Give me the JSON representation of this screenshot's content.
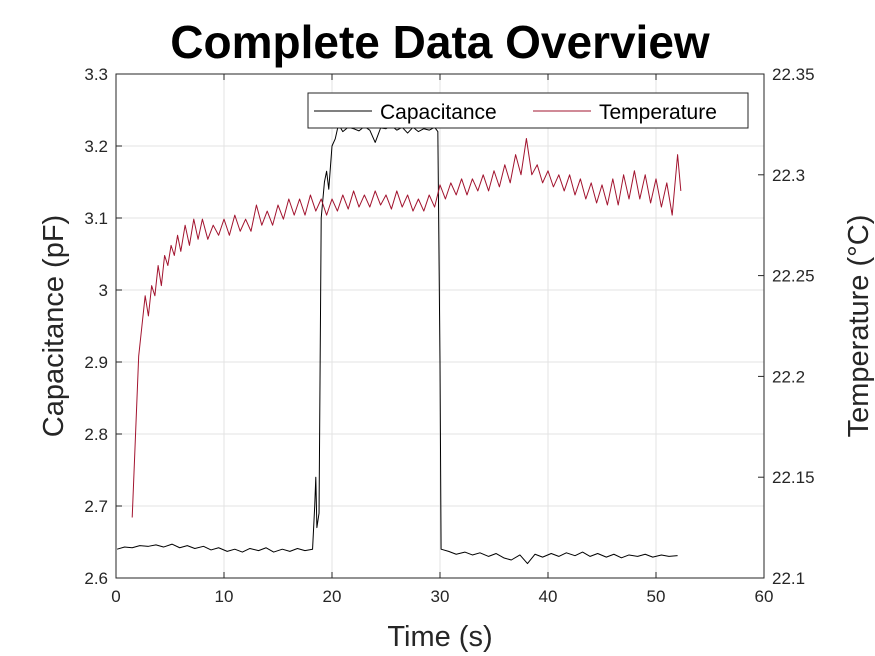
{
  "chart_data": {
    "type": "line",
    "title": "Complete Data Overview",
    "xlabel": "Time (s)",
    "ylabel_left": "Capacitance (pF)",
    "ylabel_right": "Temperature (°C)",
    "xlim": [
      0,
      60
    ],
    "ylim_left": [
      2.6,
      3.3
    ],
    "ylim_right": [
      22.1,
      22.35
    ],
    "x_ticks": [
      "0",
      "10",
      "20",
      "30",
      "40",
      "50",
      "60"
    ],
    "y_left_ticks": [
      "2.6",
      "2.7",
      "2.8",
      "2.9",
      "3",
      "3.1",
      "3.2",
      "3.3"
    ],
    "y_right_ticks": [
      "22.1",
      "22.15",
      "22.2",
      "22.25",
      "22.3",
      "22.35"
    ],
    "grid": true,
    "legend_position": "top-right",
    "series": [
      {
        "name": "Capacitance",
        "axis": "left",
        "color": "#000000",
        "points": [
          [
            0.1,
            2.64
          ],
          [
            0.8,
            2.643
          ],
          [
            1.5,
            2.642
          ],
          [
            2.2,
            2.645
          ],
          [
            3.0,
            2.644
          ],
          [
            3.7,
            2.646
          ],
          [
            4.4,
            2.643
          ],
          [
            5.2,
            2.647
          ],
          [
            5.9,
            2.642
          ],
          [
            6.6,
            2.645
          ],
          [
            7.3,
            2.641
          ],
          [
            8.1,
            2.644
          ],
          [
            8.8,
            2.639
          ],
          [
            9.5,
            2.642
          ],
          [
            10.3,
            2.637
          ],
          [
            11.0,
            2.64
          ],
          [
            11.7,
            2.636
          ],
          [
            12.4,
            2.641
          ],
          [
            13.2,
            2.638
          ],
          [
            13.9,
            2.642
          ],
          [
            14.6,
            2.636
          ],
          [
            15.4,
            2.64
          ],
          [
            16.1,
            2.637
          ],
          [
            16.8,
            2.641
          ],
          [
            17.5,
            2.638
          ],
          [
            18.2,
            2.64
          ],
          [
            18.4,
            2.7
          ],
          [
            18.5,
            2.74
          ],
          [
            18.6,
            2.67
          ],
          [
            18.8,
            2.69
          ],
          [
            19.0,
            3.1
          ],
          [
            19.3,
            3.15
          ],
          [
            19.5,
            3.165
          ],
          [
            19.7,
            3.14
          ],
          [
            20.0,
            3.2
          ],
          [
            20.3,
            3.21
          ],
          [
            20.6,
            3.23
          ],
          [
            21.0,
            3.22
          ],
          [
            21.5,
            3.226
          ],
          [
            22.0,
            3.224
          ],
          [
            22.5,
            3.221
          ],
          [
            23.0,
            3.227
          ],
          [
            23.5,
            3.222
          ],
          [
            24.0,
            3.205
          ],
          [
            24.5,
            3.225
          ],
          [
            25.0,
            3.224
          ],
          [
            25.5,
            3.228
          ],
          [
            26.0,
            3.222
          ],
          [
            26.5,
            3.226
          ],
          [
            27.0,
            3.218
          ],
          [
            27.5,
            3.226
          ],
          [
            28.0,
            3.22
          ],
          [
            28.5,
            3.224
          ],
          [
            29.0,
            3.222
          ],
          [
            29.5,
            3.226
          ],
          [
            29.8,
            3.22
          ],
          [
            30.0,
            2.9
          ],
          [
            30.1,
            2.64
          ],
          [
            30.8,
            2.637
          ],
          [
            31.5,
            2.633
          ],
          [
            32.3,
            2.636
          ],
          [
            33.0,
            2.632
          ],
          [
            33.7,
            2.635
          ],
          [
            34.5,
            2.63
          ],
          [
            35.2,
            2.634
          ],
          [
            35.9,
            2.628
          ],
          [
            36.6,
            2.625
          ],
          [
            37.4,
            2.632
          ],
          [
            38.1,
            2.62
          ],
          [
            38.8,
            2.633
          ],
          [
            39.5,
            2.629
          ],
          [
            40.3,
            2.634
          ],
          [
            41.0,
            2.63
          ],
          [
            41.7,
            2.635
          ],
          [
            42.5,
            2.631
          ],
          [
            43.2,
            2.636
          ],
          [
            43.9,
            2.63
          ],
          [
            44.6,
            2.634
          ],
          [
            45.4,
            2.629
          ],
          [
            46.1,
            2.633
          ],
          [
            46.8,
            2.628
          ],
          [
            47.5,
            2.632
          ],
          [
            48.3,
            2.63
          ],
          [
            49.0,
            2.633
          ],
          [
            49.7,
            2.629
          ],
          [
            50.5,
            2.632
          ],
          [
            51.2,
            2.63
          ],
          [
            52.0,
            2.631
          ]
        ]
      },
      {
        "name": "Temperature",
        "axis": "right",
        "color": "#a2142f",
        "points": [
          [
            1.5,
            22.13
          ],
          [
            1.8,
            22.17
          ],
          [
            2.1,
            22.21
          ],
          [
            2.4,
            22.225
          ],
          [
            2.7,
            22.24
          ],
          [
            3.0,
            22.23
          ],
          [
            3.3,
            22.245
          ],
          [
            3.6,
            22.24
          ],
          [
            3.9,
            22.255
          ],
          [
            4.2,
            22.245
          ],
          [
            4.5,
            22.26
          ],
          [
            4.8,
            22.255
          ],
          [
            5.1,
            22.265
          ],
          [
            5.4,
            22.26
          ],
          [
            5.7,
            22.27
          ],
          [
            6.0,
            22.262
          ],
          [
            6.4,
            22.275
          ],
          [
            6.8,
            22.265
          ],
          [
            7.2,
            22.278
          ],
          [
            7.6,
            22.268
          ],
          [
            8.0,
            22.278
          ],
          [
            8.5,
            22.268
          ],
          [
            9.0,
            22.275
          ],
          [
            9.5,
            22.27
          ],
          [
            10.0,
            22.278
          ],
          [
            10.5,
            22.27
          ],
          [
            11.0,
            22.28
          ],
          [
            11.5,
            22.272
          ],
          [
            12.0,
            22.278
          ],
          [
            12.5,
            22.272
          ],
          [
            13.0,
            22.285
          ],
          [
            13.5,
            22.275
          ],
          [
            14.0,
            22.282
          ],
          [
            14.5,
            22.275
          ],
          [
            15.0,
            22.285
          ],
          [
            15.5,
            22.278
          ],
          [
            16.0,
            22.288
          ],
          [
            16.5,
            22.28
          ],
          [
            17.0,
            22.288
          ],
          [
            17.5,
            22.28
          ],
          [
            18.0,
            22.29
          ],
          [
            18.5,
            22.282
          ],
          [
            19.0,
            22.288
          ],
          [
            19.5,
            22.28
          ],
          [
            20.0,
            22.288
          ],
          [
            20.5,
            22.282
          ],
          [
            21.0,
            22.29
          ],
          [
            21.5,
            22.283
          ],
          [
            22.0,
            22.292
          ],
          [
            22.5,
            22.284
          ],
          [
            23.0,
            22.29
          ],
          [
            23.5,
            22.284
          ],
          [
            24.0,
            22.292
          ],
          [
            24.5,
            22.285
          ],
          [
            25.0,
            22.29
          ],
          [
            25.5,
            22.283
          ],
          [
            26.0,
            22.292
          ],
          [
            26.5,
            22.284
          ],
          [
            27.0,
            22.29
          ],
          [
            27.5,
            22.282
          ],
          [
            28.0,
            22.288
          ],
          [
            28.5,
            22.282
          ],
          [
            29.0,
            22.29
          ],
          [
            29.5,
            22.284
          ],
          [
            30.0,
            22.295
          ],
          [
            30.5,
            22.288
          ],
          [
            31.0,
            22.296
          ],
          [
            31.5,
            22.29
          ],
          [
            32.0,
            22.298
          ],
          [
            32.5,
            22.29
          ],
          [
            33.0,
            22.298
          ],
          [
            33.5,
            22.292
          ],
          [
            34.0,
            22.3
          ],
          [
            34.5,
            22.292
          ],
          [
            35.0,
            22.302
          ],
          [
            35.5,
            22.294
          ],
          [
            36.0,
            22.305
          ],
          [
            36.5,
            22.296
          ],
          [
            37.0,
            22.31
          ],
          [
            37.5,
            22.3
          ],
          [
            38.0,
            22.318
          ],
          [
            38.5,
            22.3
          ],
          [
            39.0,
            22.305
          ],
          [
            39.5,
            22.296
          ],
          [
            40.0,
            22.302
          ],
          [
            40.5,
            22.294
          ],
          [
            41.0,
            22.3
          ],
          [
            41.5,
            22.292
          ],
          [
            42.0,
            22.3
          ],
          [
            42.5,
            22.29
          ],
          [
            43.0,
            22.298
          ],
          [
            43.5,
            22.288
          ],
          [
            44.0,
            22.296
          ],
          [
            44.5,
            22.286
          ],
          [
            45.0,
            22.295
          ],
          [
            45.5,
            22.285
          ],
          [
            46.0,
            22.298
          ],
          [
            46.5,
            22.285
          ],
          [
            47.0,
            22.3
          ],
          [
            47.5,
            22.288
          ],
          [
            48.0,
            22.302
          ],
          [
            48.5,
            22.288
          ],
          [
            49.0,
            22.3
          ],
          [
            49.5,
            22.286
          ],
          [
            50.0,
            22.298
          ],
          [
            50.5,
            22.284
          ],
          [
            51.0,
            22.296
          ],
          [
            51.5,
            22.28
          ],
          [
            52.0,
            22.31
          ],
          [
            52.3,
            22.292
          ]
        ]
      }
    ]
  }
}
